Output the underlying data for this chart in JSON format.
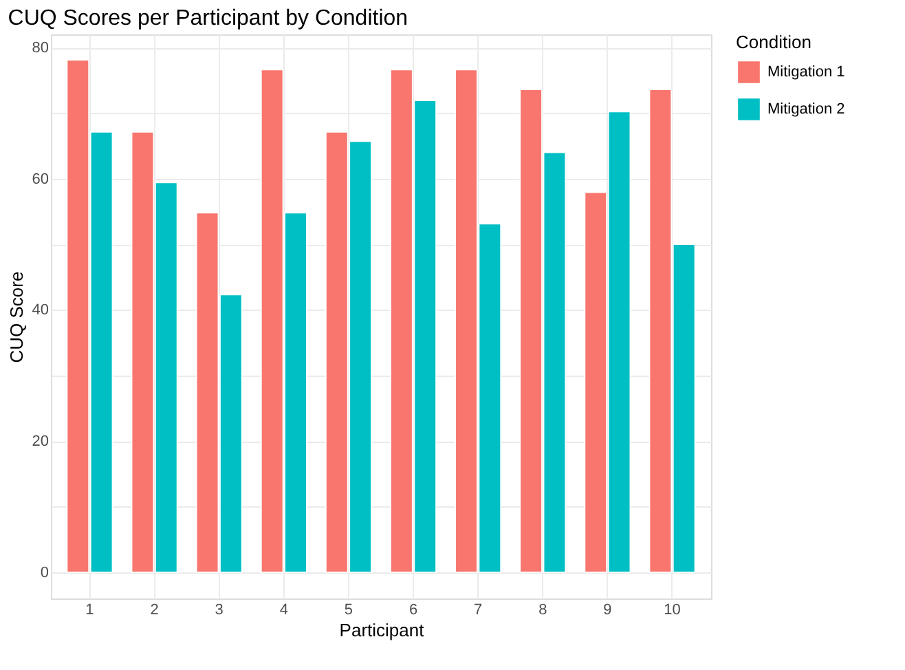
{
  "chart_data": {
    "type": "bar",
    "title": "CUQ Scores per Participant by Condition",
    "xlabel": "Participant",
    "ylabel": "CUQ Score",
    "legend_title": "Condition",
    "categories": [
      "1",
      "2",
      "3",
      "4",
      "5",
      "6",
      "7",
      "8",
      "9",
      "10"
    ],
    "series": [
      {
        "name": "Mitigation 1",
        "color": "#f8766d",
        "values": [
          78.1,
          67.1,
          54.8,
          76.6,
          67.1,
          76.6,
          76.6,
          73.6,
          57.9,
          73.6
        ]
      },
      {
        "name": "Mitigation 2",
        "color": "#00bfc4",
        "values": [
          67.1,
          59.4,
          42.3,
          54.8,
          65.7,
          71.9,
          53.1,
          64.0,
          70.2,
          50.0
        ]
      }
    ],
    "ylim": [
      -4,
      82
    ],
    "yticks": [
      0,
      {
        "value": 10,
        "label": null
      },
      20,
      {
        "value": 30,
        "label": null
      },
      40,
      {
        "value": 50,
        "label": null
      },
      60,
      {
        "value": 70,
        "label": null
      },
      80
    ],
    "grid": true,
    "legend": "right"
  }
}
